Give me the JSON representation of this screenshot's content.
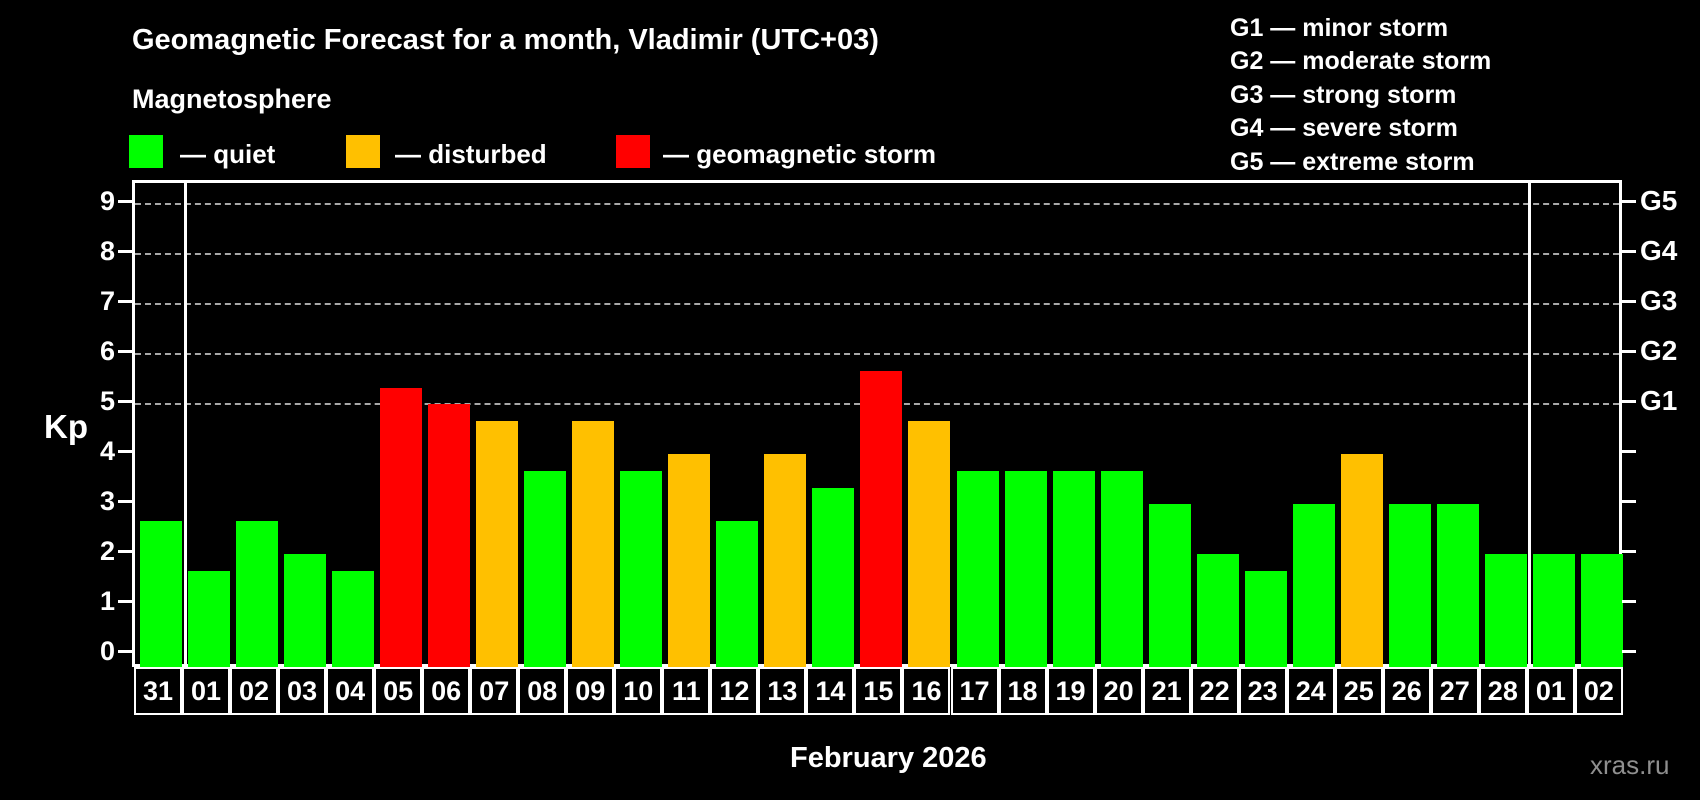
{
  "title": "Geomagnetic Forecast for a month, Vladimir (UTC+03)",
  "subtitle": "Magnetosphere",
  "legend": {
    "items": [
      {
        "label": "— quiet",
        "color": "#00ff00"
      },
      {
        "label": "— disturbed",
        "color": "#ffc000"
      },
      {
        "label": "— geomagnetic storm",
        "color": "#ff0000"
      }
    ]
  },
  "g_legend": [
    "G1 — minor storm",
    "G2 — moderate storm",
    "G3 — strong storm",
    "G4 — severe storm",
    "G5 — extreme storm"
  ],
  "axis": {
    "kp_label": "Kp",
    "kp_ticks": [
      0,
      1,
      2,
      3,
      4,
      5,
      6,
      7,
      8,
      9
    ],
    "g_levels": [
      {
        "label": "G1",
        "kp": 5
      },
      {
        "label": "G2",
        "kp": 6
      },
      {
        "label": "G3",
        "kp": 7
      },
      {
        "label": "G4",
        "kp": 8
      },
      {
        "label": "G5",
        "kp": 9
      }
    ]
  },
  "footer": {
    "month": "February 2026",
    "watermark": "xras.ru"
  },
  "chart_data": {
    "type": "bar",
    "title": "Geomagnetic Forecast for a month, Vladimir (UTC+03)",
    "ylabel": "Kp",
    "ylim": [
      0,
      9
    ],
    "grid_levels_kp": [
      5,
      6,
      7,
      8,
      9
    ],
    "legend_position": "top",
    "categories": [
      "31",
      "01",
      "02",
      "03",
      "04",
      "05",
      "06",
      "07",
      "08",
      "09",
      "10",
      "11",
      "12",
      "13",
      "14",
      "15",
      "16",
      "17",
      "18",
      "19",
      "20",
      "21",
      "22",
      "23",
      "24",
      "25",
      "26",
      "27",
      "28",
      "01",
      "02"
    ],
    "values": [
      2.67,
      1.67,
      2.67,
      2.0,
      1.67,
      5.33,
      5.0,
      4.67,
      3.67,
      4.67,
      3.67,
      4.0,
      2.67,
      4.0,
      3.33,
      5.67,
      4.67,
      3.67,
      3.67,
      3.67,
      3.67,
      3.0,
      2.0,
      1.67,
      3.0,
      4.0,
      3.0,
      3.0,
      2.0,
      2.0,
      2.0
    ],
    "status": [
      "quiet",
      "quiet",
      "quiet",
      "quiet",
      "quiet",
      "storm",
      "storm",
      "disturbed",
      "quiet",
      "disturbed",
      "quiet",
      "disturbed",
      "quiet",
      "disturbed",
      "quiet",
      "storm",
      "disturbed",
      "quiet",
      "quiet",
      "quiet",
      "quiet",
      "quiet",
      "quiet",
      "quiet",
      "quiet",
      "disturbed",
      "quiet",
      "quiet",
      "quiet",
      "quiet",
      "quiet"
    ],
    "status_colors": {
      "quiet": "#00ff00",
      "disturbed": "#ffc000",
      "storm": "#ff0000"
    },
    "month_separators_after_index": [
      0,
      28
    ]
  }
}
